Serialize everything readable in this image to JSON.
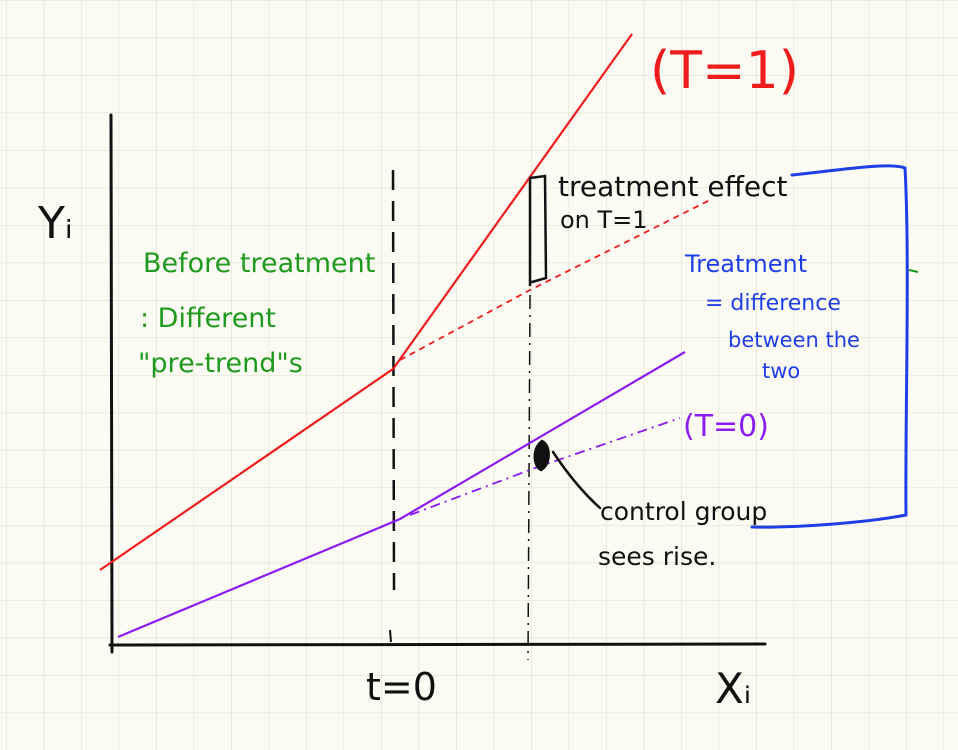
{
  "colors": {
    "background": "#fbfbf3",
    "grid": "#e2e2cf",
    "axis": "#111111",
    "treated": "#ee1c1c",
    "control": "#8b1cf0",
    "note_green": "#1f9a1f",
    "note_blue": "#1f3fe6",
    "ink": "#111111"
  },
  "axes": {
    "y_label": "Yᵢ",
    "x_label": "Xᵢ",
    "x_tick_label": "t=0"
  },
  "labels": {
    "treated_group": "(T=1)",
    "control_group": "(T=0)",
    "treatment_effect_line1": "treatment effect",
    "treatment_effect_line2": "on T=1",
    "before_line1": "Before treatment",
    "before_line2": ": Different",
    "before_line3": "\"pre-trend\"s",
    "blue_line1": "Treatment",
    "blue_line2": "= difference",
    "blue_line3": "between the",
    "blue_line4": "two",
    "control_note_line1": "control group",
    "control_note_line2": "sees rise."
  }
}
